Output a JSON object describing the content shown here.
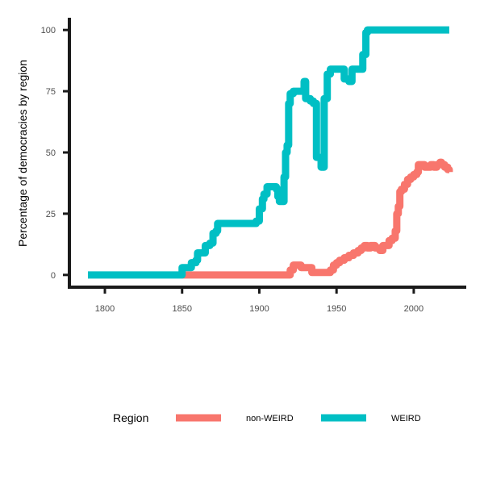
{
  "chart_data": {
    "type": "line",
    "title": "",
    "xlabel": "",
    "ylabel": "Percentage of democracies by region",
    "xlim": [
      1777,
      2034
    ],
    "ylim": [
      -5,
      105
    ],
    "x_ticks": [
      1800,
      1850,
      1900,
      1950,
      2000
    ],
    "x_tick_labels": [
      "1800",
      "1850",
      "1900",
      "1950",
      "2000"
    ],
    "y_ticks": [
      0,
      25,
      50,
      75,
      100
    ],
    "y_tick_labels": [
      "0",
      "25",
      "50",
      "75",
      "100"
    ],
    "grid": false,
    "legend": {
      "title": "Region",
      "position": "bottom"
    },
    "series": [
      {
        "name": "non-WEIRD",
        "color": "#F8766D",
        "points": [
          [
            1850,
            0
          ],
          [
            1900,
            0
          ],
          [
            1918,
            0
          ],
          [
            1920,
            2
          ],
          [
            1922,
            4
          ],
          [
            1925,
            4
          ],
          [
            1927,
            3
          ],
          [
            1930,
            3
          ],
          [
            1932,
            3
          ],
          [
            1934,
            1
          ],
          [
            1940,
            1
          ],
          [
            1944,
            1
          ],
          [
            1946,
            2
          ],
          [
            1948,
            4
          ],
          [
            1950,
            5
          ],
          [
            1952,
            6
          ],
          [
            1955,
            7
          ],
          [
            1958,
            8
          ],
          [
            1961,
            9
          ],
          [
            1964,
            10
          ],
          [
            1966,
            11
          ],
          [
            1968,
            12
          ],
          [
            1970,
            11
          ],
          [
            1972,
            12
          ],
          [
            1975,
            11
          ],
          [
            1978,
            10
          ],
          [
            1980,
            12
          ],
          [
            1982,
            12
          ],
          [
            1984,
            14
          ],
          [
            1986,
            15
          ],
          [
            1988,
            18
          ],
          [
            1989,
            25
          ],
          [
            1990,
            28
          ],
          [
            1991,
            34
          ],
          [
            1992,
            35
          ],
          [
            1994,
            37
          ],
          [
            1996,
            39
          ],
          [
            1998,
            40
          ],
          [
            2000,
            41
          ],
          [
            2002,
            42
          ],
          [
            2003,
            45
          ],
          [
            2005,
            45
          ],
          [
            2007,
            44
          ],
          [
            2009,
            44
          ],
          [
            2011,
            45
          ],
          [
            2013,
            44
          ],
          [
            2015,
            45
          ],
          [
            2017,
            46
          ],
          [
            2018,
            45
          ],
          [
            2020,
            44
          ],
          [
            2022,
            43
          ],
          [
            2023,
            42
          ]
        ]
      },
      {
        "name": "WEIRD",
        "color": "#00BFC4",
        "points": [
          [
            1789,
            0
          ],
          [
            1848,
            0
          ],
          [
            1850,
            3
          ],
          [
            1855,
            3
          ],
          [
            1856,
            5
          ],
          [
            1859,
            6
          ],
          [
            1860,
            9
          ],
          [
            1864,
            9
          ],
          [
            1865,
            12
          ],
          [
            1868,
            13
          ],
          [
            1870,
            17
          ],
          [
            1872,
            18
          ],
          [
            1873,
            21
          ],
          [
            1897,
            21
          ],
          [
            1898,
            22
          ],
          [
            1900,
            27
          ],
          [
            1902,
            31
          ],
          [
            1903,
            33
          ],
          [
            1905,
            36
          ],
          [
            1910,
            36
          ],
          [
            1911,
            35
          ],
          [
            1912,
            32
          ],
          [
            1913,
            30
          ],
          [
            1915,
            30
          ],
          [
            1916,
            40
          ],
          [
            1917,
            50
          ],
          [
            1918,
            53
          ],
          [
            1919,
            70
          ],
          [
            1920,
            74
          ],
          [
            1922,
            75
          ],
          [
            1926,
            75
          ],
          [
            1928,
            75
          ],
          [
            1929,
            79
          ],
          [
            1930,
            72
          ],
          [
            1933,
            71
          ],
          [
            1935,
            70
          ],
          [
            1937,
            48
          ],
          [
            1939,
            48
          ],
          [
            1940,
            44
          ],
          [
            1941,
            44
          ],
          [
            1942,
            72
          ],
          [
            1944,
            82
          ],
          [
            1946,
            84
          ],
          [
            1953,
            84
          ],
          [
            1955,
            80
          ],
          [
            1958,
            79
          ],
          [
            1960,
            84
          ],
          [
            1963,
            84
          ],
          [
            1965,
            84
          ],
          [
            1967,
            90
          ],
          [
            1969,
            99
          ],
          [
            1970,
            100
          ],
          [
            2023,
            100
          ]
        ]
      }
    ]
  }
}
